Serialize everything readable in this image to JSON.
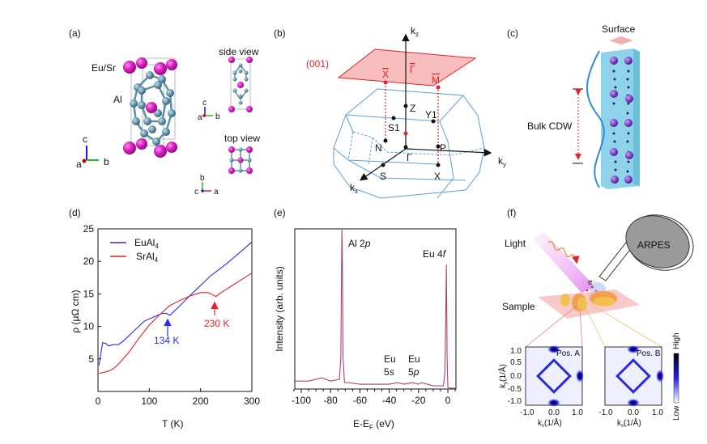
{
  "panels": {
    "a": {
      "label": "(a)",
      "eu_sr": "Eu/Sr",
      "al": "Al",
      "side_view": "side view",
      "top_view": "top view",
      "axis_c": "c",
      "axis_a": "a",
      "axis_b": "b"
    },
    "b": {
      "label": "(b)",
      "plane": "(001)",
      "kz": "k",
      "kz_sub": "z",
      "ky": "k",
      "ky_sub": "y",
      "kx": "k",
      "kx_sub": "x",
      "X_bar": "X",
      "Gamma_bar": "Γ",
      "M_bar": "M",
      "Z": "Z",
      "Y1": "Y1",
      "S1": "S1",
      "N": "N",
      "P": "P",
      "Gamma": "Γ",
      "S": "S",
      "X": "X"
    },
    "c": {
      "label": "(c)",
      "surface": "Surface",
      "bulk_cdw": "Bulk CDW"
    },
    "d": {
      "label": "(d)"
    },
    "e": {
      "label": "(e)"
    },
    "f": {
      "label": "(f)",
      "light": "Light",
      "arpes": "ARPES",
      "sample": "Sample",
      "electron": "e",
      "electron_sup": "-",
      "pos_a": "Pos. A",
      "pos_b": "Pos. B",
      "high": "High",
      "low": "Low",
      "ky_label": "k",
      "ky_sub": "y",
      "ky_unit": "(1/Å)",
      "kx_label": "k",
      "kx_sub": "x",
      "kx_unit": "(1/Å)",
      "yticks": [
        "1.0",
        "0.5",
        "0.0",
        "-0.5",
        "-1.0"
      ],
      "xticks": [
        "-1.0",
        "0.0",
        "1.0"
      ]
    }
  },
  "colors": {
    "eu": "#d81fc0",
    "al": "#5f8ea8",
    "bz": "#5b9fd8",
    "plane": "#f5a0a0",
    "euAl4": "#2a2af0",
    "srAl4": "#e8202a",
    "spectrum": "#b04070"
  },
  "chart_data": [
    {
      "type": "line",
      "title": "",
      "xlabel": "T (K)",
      "ylabel": "ρ (μΩ cm)",
      "xlim": [
        0,
        300
      ],
      "ylim": [
        0,
        25
      ],
      "xticks": [
        0,
        100,
        200,
        300
      ],
      "yticks": [
        5,
        10,
        15,
        20,
        25
      ],
      "legend": "top-left",
      "series": [
        {
          "name": "EuAl4",
          "name_main": "EuAl",
          "name_sub": "4",
          "x": [
            2,
            5,
            9,
            15,
            20,
            30,
            40,
            50,
            70,
            90,
            110,
            125,
            134,
            140,
            160,
            180,
            200,
            220,
            250,
            280,
            300
          ],
          "y": [
            4,
            5.5,
            7.5,
            7.4,
            7.0,
            7.2,
            7.2,
            7.8,
            9.3,
            10.8,
            11.5,
            12.0,
            12.0,
            11.7,
            13.2,
            14.8,
            16.3,
            17.8,
            19.6,
            21.6,
            23
          ]
        },
        {
          "name": "SrAl4",
          "name_main": "SrAl",
          "name_sub": "4",
          "x": [
            2,
            10,
            20,
            30,
            40,
            60,
            80,
            100,
            120,
            140,
            160,
            180,
            200,
            215,
            230,
            240,
            260,
            280,
            300
          ],
          "y": [
            2.8,
            2.9,
            3.1,
            3.5,
            4.2,
            6.0,
            8.2,
            10.2,
            11.8,
            13.2,
            14.0,
            14.7,
            15.2,
            15.2,
            14.6,
            15.2,
            16.2,
            17.2,
            18.2
          ]
        }
      ],
      "annotations": [
        {
          "text": "134 K",
          "x": 134,
          "series": "EuAl4"
        },
        {
          "text": "230 K",
          "x": 230,
          "series": "SrAl4"
        }
      ]
    },
    {
      "type": "line",
      "title": "",
      "xlabel": "E-E",
      "xlabel_sub": "F",
      "xlabel_unit": " (eV)",
      "ylabel": "Intensity (arb. units)",
      "xlim": [
        -105,
        5
      ],
      "ylim": [
        0,
        1
      ],
      "xticks": [
        -100,
        -80,
        -60,
        -40,
        -20,
        0
      ],
      "series": [
        {
          "name": "spectrum",
          "x": [
            -105,
            -95,
            -86,
            -80,
            -74,
            -73,
            -72.3,
            -72,
            -71.5,
            -70.5,
            -68,
            -60,
            -50,
            -40,
            -34,
            -30,
            -24,
            -20,
            -18,
            -10,
            -3,
            -2,
            -1.5,
            -1,
            -0.5,
            0,
            2,
            5
          ],
          "y": [
            0.05,
            0.05,
            0.07,
            0.05,
            0.06,
            0.2,
            1.0,
            0.85,
            0.2,
            0.04,
            0.04,
            0.03,
            0.03,
            0.03,
            0.04,
            0.03,
            0.04,
            0.03,
            0.04,
            0.02,
            0.02,
            0.1,
            0.4,
            0.78,
            0.2,
            0.01,
            0.005,
            0.005
          ]
        }
      ],
      "annotations": [
        {
          "text": "Al 2",
          "italic": "p",
          "x": -72
        },
        {
          "text": "Eu 4",
          "italic": "f",
          "x": -1
        },
        {
          "text": "Eu",
          "line2": "5",
          "italic": "s",
          "x": -38
        },
        {
          "text": "Eu",
          "line2": "5",
          "italic": "p",
          "x": -22
        }
      ]
    }
  ]
}
